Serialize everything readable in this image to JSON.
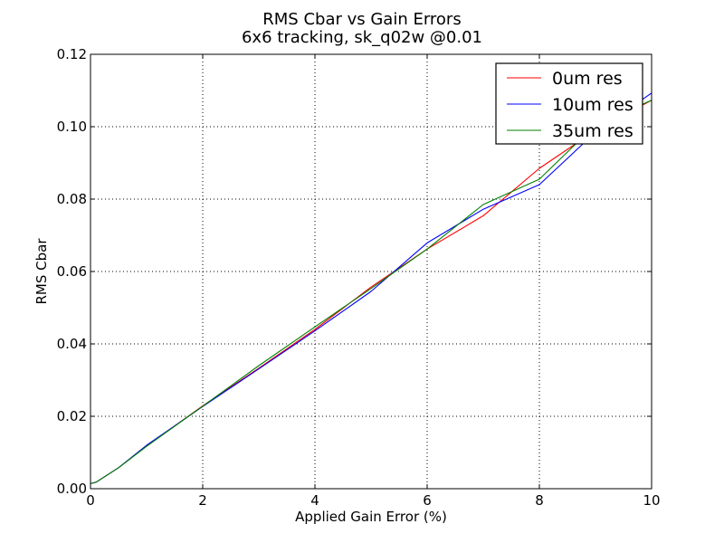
{
  "chart_data": {
    "type": "line",
    "title": "RMS Cbar vs Gain Errors",
    "subtitle": "6x6 tracking, sk_q02w @0.01",
    "xlabel": "Applied Gain Error (%)",
    "ylabel": "RMS Cbar",
    "xlim": [
      0,
      10
    ],
    "ylim": [
      0,
      0.12
    ],
    "xticks": [
      0,
      2,
      4,
      6,
      8,
      10
    ],
    "xtick_labels": [
      "0",
      "2",
      "4",
      "6",
      "8",
      "10"
    ],
    "yticks": [
      0,
      0.02,
      0.04,
      0.06,
      0.08,
      0.1,
      0.12
    ],
    "ytick_labels": [
      "0.00",
      "0.02",
      "0.04",
      "0.06",
      "0.08",
      "0.10",
      "0.12"
    ],
    "grid": true,
    "legend_position": "top-right",
    "series": [
      {
        "name": "0um res",
        "color": "#ff0000",
        "x": [
          0,
          0.1,
          0.5,
          1,
          2,
          3,
          4,
          5,
          6,
          7,
          8,
          9,
          10
        ],
        "y": [
          0.0014,
          0.0018,
          0.0058,
          0.0118,
          0.0229,
          0.0333,
          0.044,
          0.0557,
          0.0662,
          0.0754,
          0.0885,
          0.099,
          0.1073
        ]
      },
      {
        "name": "10um res",
        "color": "#0000ff",
        "x": [
          0,
          0.1,
          0.5,
          1,
          2,
          3,
          4,
          5,
          6,
          7,
          8,
          9,
          10
        ],
        "y": [
          0.0014,
          0.0018,
          0.0058,
          0.012,
          0.0227,
          0.0331,
          0.0436,
          0.0545,
          0.0679,
          0.0772,
          0.084,
          0.0985,
          0.1093
        ]
      },
      {
        "name": "35um res",
        "color": "#008000",
        "x": [
          0,
          0.1,
          0.5,
          1,
          2,
          3,
          4,
          5,
          6,
          7,
          8,
          9,
          10
        ],
        "y": [
          0.0014,
          0.0018,
          0.0058,
          0.0117,
          0.0228,
          0.034,
          0.0447,
          0.0553,
          0.0662,
          0.0785,
          0.0855,
          0.1005,
          0.1073
        ]
      }
    ]
  }
}
